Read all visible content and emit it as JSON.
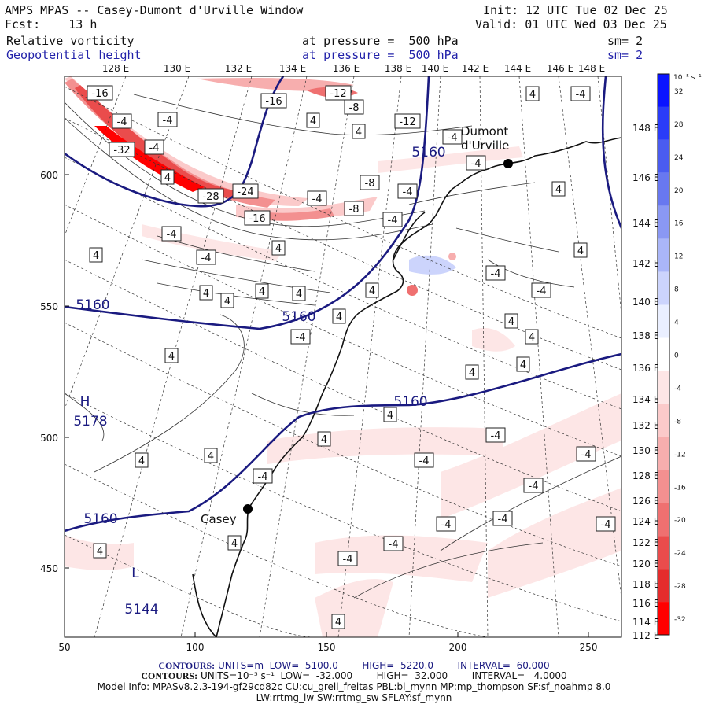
{
  "header": {
    "title": "AMPS MPAS -- Casey-Dumont d'Urville Window",
    "forecast": "Fcst:    13 h",
    "init": "Init: 12 UTC Tue 02 Dec 25",
    "valid": "Valid: 01 UTC Wed 03 Dec 25"
  },
  "fields": [
    {
      "name": "Relative vorticity",
      "level": "at pressure =  500 hPa",
      "smooth": "sm= 2"
    },
    {
      "name": "Geopotential height",
      "level": "at pressure =  500 hPa",
      "smooth": "sm= 2"
    }
  ],
  "map": {
    "top_lon_labels": [
      "128 E",
      "130 E",
      "132 E",
      "134 E",
      "136 E",
      "138 E",
      "140 E",
      "142 E",
      "144 E",
      "146 E",
      "148 E"
    ],
    "right_lon_labels": [
      "148 E",
      "146 E",
      "144 E",
      "142 E",
      "140 E",
      "138 E",
      "136 E",
      "134 E",
      "132 E",
      "130 E",
      "128 E",
      "126 E",
      "124 E",
      "122 E",
      "120 E",
      "118 E",
      "116 E",
      "114 E",
      "112 E"
    ],
    "x_ticks": [
      "50",
      "100",
      "150",
      "200",
      "250"
    ],
    "y_ticks": [
      "600",
      "550",
      "500",
      "450"
    ],
    "stations": [
      {
        "name": "Dumont\nd'Urville",
        "lat": -66.66,
        "lon": 140.0
      },
      {
        "name": "Casey",
        "lat": -66.28,
        "lon": 110.5
      }
    ],
    "height_labels": [
      "5160",
      "5160",
      "5160",
      "5160",
      "5160",
      "H",
      "5178",
      "L",
      "5144"
    ],
    "vort_labels": [
      "-16",
      "-12",
      "-16",
      "-8",
      "-4",
      "-4",
      "4",
      "4",
      "-12",
      "-32",
      "-4",
      "4",
      "-28",
      "-24",
      "-4",
      "-8",
      "-4",
      "-8",
      "-4",
      "-16",
      "-4",
      "4",
      "-4",
      "4",
      "-4",
      "-4",
      "4",
      "-4",
      "4",
      "4",
      "-4",
      "-4",
      "4",
      "4",
      "4",
      "4",
      "4",
      "4",
      "-4",
      "4",
      "4",
      "4",
      "4",
      "4",
      "4",
      "-4",
      "4",
      "-4",
      "4",
      "4",
      "-4",
      "-4",
      "-4",
      "-4",
      "-4",
      "-4",
      "-4",
      "-4",
      "4",
      "4",
      "4",
      "-4"
    ]
  },
  "colorbar": {
    "unit": "10⁻⁵ s⁻¹",
    "levels": [
      "32",
      "28",
      "24",
      "20",
      "16",
      "12",
      "8",
      "4",
      "0",
      "-4",
      "-8",
      "-12",
      "-16",
      "-20",
      "-24",
      "-28",
      "-32"
    ],
    "colors": [
      "#0a14ff",
      "#2a3cf8",
      "#4a5cf0",
      "#6878f0",
      "#8a98f4",
      "#aab6f8",
      "#ccd4fc",
      "#eaefff",
      "#ffffff",
      "#fde6e6",
      "#fbcaca",
      "#f7aeae",
      "#f39090",
      "#ef7070",
      "#ea4c4c",
      "#e42c2c",
      "#ff0000"
    ]
  },
  "footer": {
    "line1_label": "CONTOURS:",
    "line1": "UNITS=m  LOW=  5100.0        HIGH=  5220.0        INTERVAL=  60.000",
    "line2_label": "CONTOURS:",
    "line2": "UNITS=10⁻⁵ s⁻¹  LOW=  -32.000        HIGH=  32.000        INTERVAL=   4.0000",
    "line3": "Model Info: MPASv8.2.3-194-gf29cd82c CU:cu_grell_freitas PBL:bl_mynn MP:mp_thompson SF:sf_noahmp 8.0",
    "line4": "LW:rrtmg_lw SW:rrtmg_sw SFLAY:sf_mynn"
  }
}
